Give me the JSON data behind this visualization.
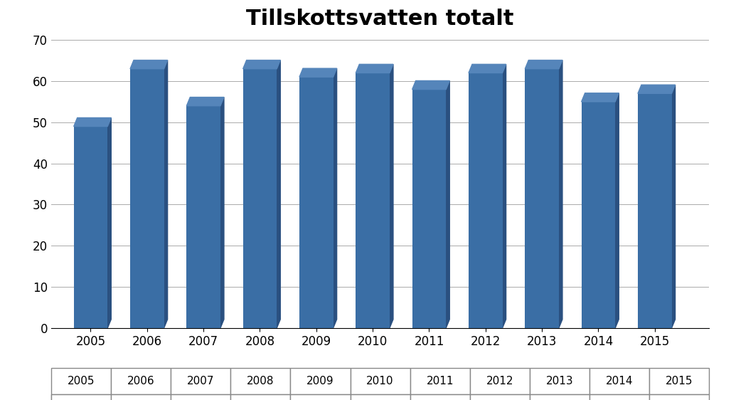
{
  "title": "Tillskottsvatten totalt",
  "categories": [
    "2005",
    "2006",
    "2007",
    "2008",
    "2009",
    "2010",
    "2011",
    "2012",
    "2013",
    "2014",
    "2015"
  ],
  "values": [
    49,
    63,
    54,
    63,
    61,
    62,
    58,
    62,
    63,
    55,
    57
  ],
  "bar_color_face": "#3A6EA5",
  "bar_color_side": "#2A5080",
  "bar_color_top": "#5585BA",
  "ylim": [
    0,
    70
  ],
  "yticks": [
    0,
    10,
    20,
    30,
    40,
    50,
    60,
    70
  ],
  "title_fontsize": 22,
  "tick_fontsize": 12,
  "legend_label": "%",
  "background_color": "#FFFFFF",
  "grid_color": "#AAAAAA",
  "depth": 3.5,
  "bar_width": 0.6
}
